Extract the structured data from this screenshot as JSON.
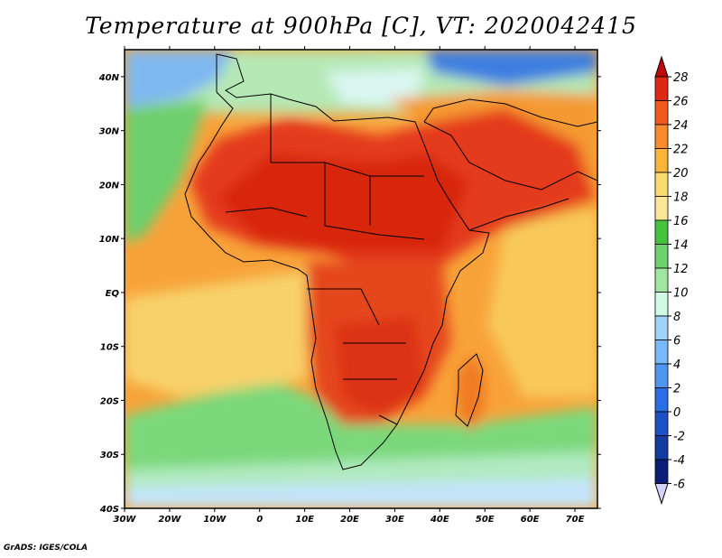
{
  "title": "Temperature at 900hPa [C], VT: 2020042415",
  "credit": "GrADS: IGES/COLA",
  "map": {
    "variable": "Temperature",
    "level": "900hPa",
    "units": "C",
    "valid_time": "2020042415",
    "lon_ticks": [
      "30W",
      "20W",
      "10W",
      "0",
      "10E",
      "20E",
      "30E",
      "40E",
      "50E",
      "60E",
      "70E"
    ],
    "lat_ticks": [
      "40N",
      "30N",
      "20N",
      "10N",
      "EQ",
      "10S",
      "20S",
      "30S",
      "40S"
    ],
    "lon_range": [
      -30,
      75
    ],
    "lat_range": [
      -40,
      45
    ]
  },
  "colorbar": {
    "labels": [
      "28",
      "26",
      "24",
      "22",
      "20",
      "18",
      "16",
      "14",
      "12",
      "10",
      "8",
      "6",
      "4",
      "2",
      "0",
      "-2",
      "-4",
      "-6"
    ],
    "colors": [
      "#c00a0a",
      "#dc2814",
      "#f05a1e",
      "#f88c2a",
      "#fab43c",
      "#fadc6e",
      "#fae696",
      "#46c33c",
      "#6ed26e",
      "#a0e6a0",
      "#d2f8e6",
      "#a0d2fa",
      "#78b9fa",
      "#5096f0",
      "#2a6ee6",
      "#1e50c8",
      "#143ca0",
      "#0a1e78",
      "#d2d2fa"
    ]
  }
}
